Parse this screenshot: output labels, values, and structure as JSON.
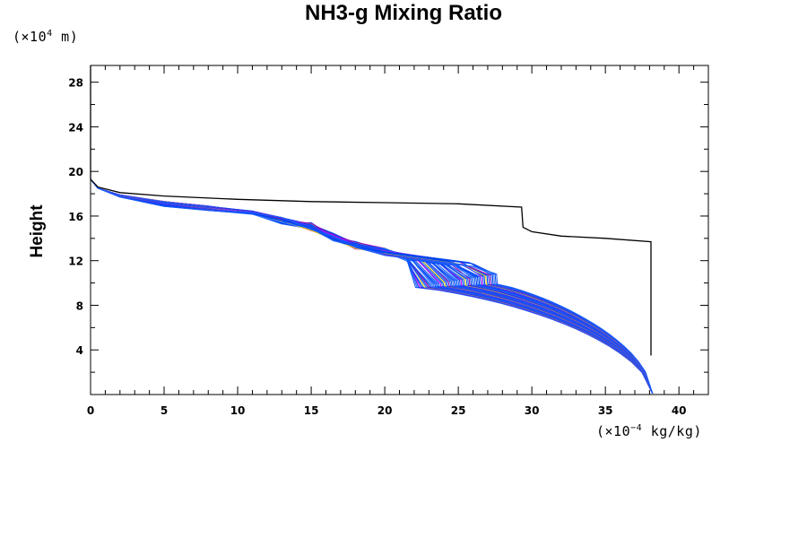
{
  "chart_data": {
    "type": "line",
    "title": "NH3-g Mixing Ratio",
    "ylabel": "Height",
    "y_units": {
      "prefix": "(×10",
      "exp": "4",
      "suffix": " m)"
    },
    "x_units": {
      "prefix": "(×10",
      "exp": "−4",
      "suffix": " kg/kg)"
    },
    "xlim": [
      0,
      42
    ],
    "ylim": [
      0,
      29.5
    ],
    "x_ticks": [
      0,
      5,
      10,
      15,
      20,
      25,
      30,
      35,
      40
    ],
    "y_ticks": [
      4,
      8,
      12,
      16,
      20,
      24,
      28
    ],
    "grid": false,
    "black_series": {
      "name": "",
      "color": "#000000",
      "points": [
        [
          0,
          29.5
        ],
        [
          0,
          19.3
        ],
        [
          0.5,
          18.6
        ],
        [
          2,
          18.1
        ],
        [
          5,
          17.8
        ],
        [
          10,
          17.5
        ],
        [
          15,
          17.3
        ],
        [
          20,
          17.2
        ],
        [
          25,
          17.1
        ],
        [
          29.3,
          16.8
        ],
        [
          29.4,
          15.0
        ],
        [
          30,
          14.6
        ],
        [
          32,
          14.2
        ],
        [
          35,
          14.0
        ],
        [
          38.1,
          13.7
        ],
        [
          38.1,
          3.5
        ]
      ]
    },
    "series_family": {
      "count": 60,
      "colors": [
        "#0055ff",
        "#2266ff",
        "#ff00cc",
        "#cc00ff",
        "#00aa00",
        "#ff6600",
        "#ffdd00",
        "#008888",
        "#4444ff",
        "#aa00aa",
        "#0099ff",
        "#ff0000",
        "#3377ff",
        "#880088",
        "#00cc99"
      ],
      "drop_x_range": [
        22.1,
        27.6
      ],
      "drop_height_range": [
        9.6,
        10.8
      ],
      "lower_branch_x_range": [
        22.1,
        27.6
      ],
      "surface_x": 38.2
    }
  }
}
